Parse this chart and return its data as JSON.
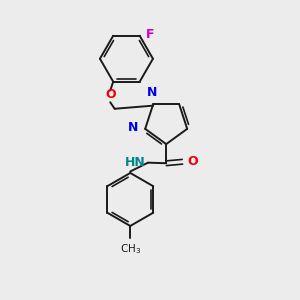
{
  "background_color": "#ececec",
  "bond_color": "#1a1a1a",
  "N_color": "#0000ee",
  "O_color": "#ee0000",
  "F_color": "#cc00cc",
  "NH_color": "#008888",
  "figsize": [
    3.0,
    3.0
  ],
  "dpi": 100,
  "xlim": [
    0,
    10
  ],
  "ylim": [
    0,
    10
  ]
}
